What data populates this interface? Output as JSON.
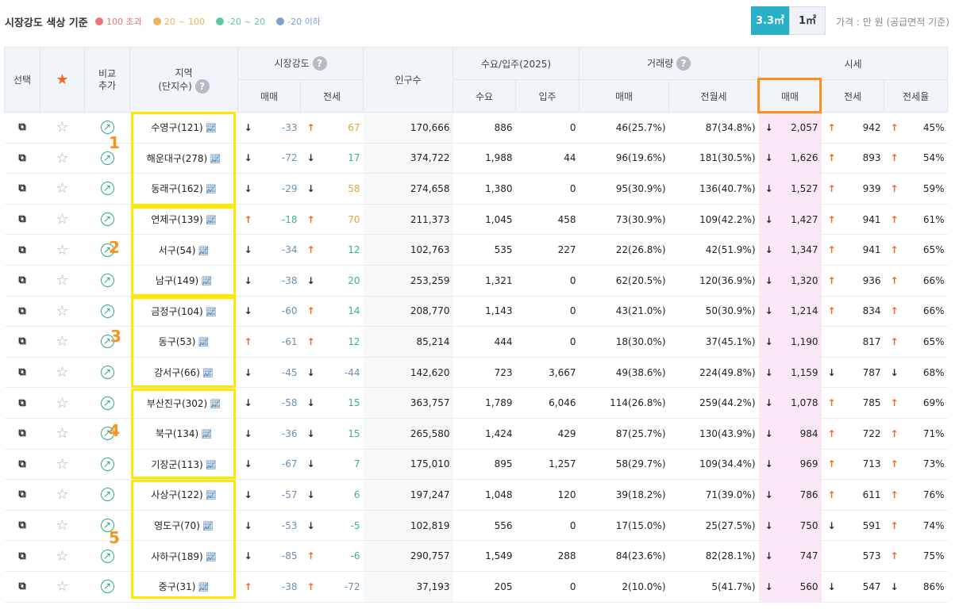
{
  "header": {
    "title": "시장강도 색상 기준",
    "legend": [
      {
        "label": "100 초과",
        "color": "#e8747c"
      },
      {
        "label": "20 ~ 100",
        "color": "#eab35c"
      },
      {
        "label": "-20 ~ 20",
        "color": "#5cc8a3"
      },
      {
        "label": "-20 이하",
        "color": "#7f9fd1"
      }
    ],
    "unit_active": "3.3㎡",
    "unit_inactive": "1㎡",
    "price_note": "가격 : 만 원 (공급면적 기준)"
  },
  "columns": {
    "select": "선택",
    "compare": "비교\n추가",
    "region": "지역",
    "region_sub": "(단지수)",
    "market": "시장강도",
    "market_sale": "매매",
    "market_jeonse": "전세",
    "population": "인구수",
    "supply": "수요/입주(2025)",
    "demand": "수요",
    "move_in": "입주",
    "volume": "거래량",
    "vol_sale": "매매",
    "vol_rent": "전월세",
    "price": "시세",
    "price_sale": "매매",
    "price_jeonse": "전세",
    "jeonse_ratio": "전세율"
  },
  "group_labels": [
    "1",
    "2",
    "3",
    "4",
    "5"
  ],
  "rows": [
    {
      "region": "수영구(121)",
      "ms_dir": "dn",
      "ms": "-33",
      "mj_dir": "up",
      "mj": "67",
      "mj_c": "org",
      "pop": "170,666",
      "demand": "886",
      "movein": "0",
      "vs": "46(25.7%)",
      "vr": "87(34.8%)",
      "ps_dir": "dn",
      "ps": "2,057",
      "pj_dir": "up",
      "pj": "942",
      "r_dir": "up",
      "r": "45%"
    },
    {
      "region": "해운대구(278)",
      "ms_dir": "dn",
      "ms": "-72",
      "mj_dir": "dn",
      "mj": "17",
      "mj_c": "grn",
      "pop": "374,722",
      "demand": "1,988",
      "movein": "44",
      "vs": "96(19.6%)",
      "vr": "181(30.5%)",
      "ps_dir": "dn",
      "ps": "1,626",
      "pj_dir": "up",
      "pj": "893",
      "r_dir": "up",
      "r": "54%"
    },
    {
      "region": "동래구(162)",
      "ms_dir": "dn",
      "ms": "-29",
      "mj_dir": "dn",
      "mj": "58",
      "mj_c": "org",
      "pop": "274,658",
      "demand": "1,380",
      "movein": "0",
      "vs": "95(30.9%)",
      "vr": "136(40.7%)",
      "ps_dir": "dn",
      "ps": "1,527",
      "pj_dir": "up",
      "pj": "939",
      "r_dir": "up",
      "r": "59%"
    },
    {
      "region": "연제구(139)",
      "ms_dir": "up",
      "ms": "-18",
      "ms_c": "grn",
      "mj_dir": "up",
      "mj": "70",
      "mj_c": "org",
      "pop": "211,373",
      "demand": "1,045",
      "movein": "458",
      "vs": "73(30.9%)",
      "vr": "109(42.2%)",
      "ps_dir": "dn",
      "ps": "1,427",
      "pj_dir": "up",
      "pj": "941",
      "r_dir": "up",
      "r": "61%"
    },
    {
      "region": "서구(54)",
      "ms_dir": "dn",
      "ms": "-34",
      "mj_dir": "up",
      "mj": "12",
      "mj_c": "grn",
      "pop": "102,763",
      "demand": "535",
      "movein": "227",
      "vs": "22(26.8%)",
      "vr": "42(51.9%)",
      "ps_dir": "dn",
      "ps": "1,347",
      "pj_dir": "up",
      "pj": "941",
      "r_dir": "up",
      "r": "65%"
    },
    {
      "region": "남구(149)",
      "ms_dir": "dn",
      "ms": "-38",
      "mj_dir": "dn",
      "mj": "20",
      "mj_c": "grn",
      "pop": "253,259",
      "demand": "1,321",
      "movein": "0",
      "vs": "62(20.5%)",
      "vr": "120(36.9%)",
      "ps_dir": "dn",
      "ps": "1,320",
      "pj_dir": "up",
      "pj": "936",
      "r_dir": "up",
      "r": "66%"
    },
    {
      "region": "금정구(104)",
      "ms_dir": "dn",
      "ms": "-60",
      "mj_dir": "up",
      "mj": "14",
      "mj_c": "grn",
      "pop": "208,770",
      "demand": "1,143",
      "movein": "0",
      "vs": "43(21.0%)",
      "vr": "50(30.9%)",
      "ps_dir": "dn",
      "ps": "1,214",
      "pj_dir": "up",
      "pj": "834",
      "r_dir": "up",
      "r": "66%"
    },
    {
      "region": "동구(53)",
      "ms_dir": "up",
      "ms": "-61",
      "mj_dir": "up",
      "mj": "12",
      "mj_c": "grn",
      "pop": "85,214",
      "demand": "444",
      "movein": "0",
      "vs": "18(30.0%)",
      "vr": "37(45.1%)",
      "ps_dir": "dn",
      "ps": "1,190",
      "pj_dir": "",
      "pj": "817",
      "r_dir": "up",
      "r": "65%"
    },
    {
      "region": "강서구(66)",
      "ms_dir": "dn",
      "ms": "-45",
      "mj_dir": "dn",
      "mj": "-44",
      "mj_c": "neg",
      "pop": "142,620",
      "demand": "723",
      "movein": "3,667",
      "vs": "49(38.6%)",
      "vr": "224(49.8%)",
      "ps_dir": "dn",
      "ps": "1,159",
      "pj_dir": "dn",
      "pj": "787",
      "r_dir": "dn",
      "r": "68%"
    },
    {
      "region": "부산진구(302)",
      "ms_dir": "dn",
      "ms": "-58",
      "mj_dir": "dn",
      "mj": "15",
      "mj_c": "grn",
      "pop": "363,757",
      "demand": "1,789",
      "movein": "6,046",
      "vs": "114(26.8%)",
      "vr": "259(44.2%)",
      "ps_dir": "dn",
      "ps": "1,078",
      "pj_dir": "up",
      "pj": "785",
      "r_dir": "up",
      "r": "69%"
    },
    {
      "region": "북구(134)",
      "ms_dir": "dn",
      "ms": "-36",
      "mj_dir": "dn",
      "mj": "15",
      "mj_c": "grn",
      "pop": "265,580",
      "demand": "1,424",
      "movein": "429",
      "vs": "87(25.7%)",
      "vr": "130(43.9%)",
      "ps_dir": "dn",
      "ps": "984",
      "pj_dir": "up",
      "pj": "722",
      "r_dir": "up",
      "r": "71%"
    },
    {
      "region": "기장군(113)",
      "ms_dir": "dn",
      "ms": "-67",
      "mj_dir": "dn",
      "mj": "7",
      "mj_c": "grn",
      "pop": "175,010",
      "demand": "895",
      "movein": "1,257",
      "vs": "58(29.7%)",
      "vr": "109(34.4%)",
      "ps_dir": "dn",
      "ps": "969",
      "pj_dir": "up",
      "pj": "713",
      "r_dir": "up",
      "r": "73%"
    },
    {
      "region": "사상구(122)",
      "ms_dir": "dn",
      "ms": "-57",
      "mj_dir": "dn",
      "mj": "6",
      "mj_c": "grn",
      "pop": "197,247",
      "demand": "1,048",
      "movein": "120",
      "vs": "39(18.2%)",
      "vr": "71(39.0%)",
      "ps_dir": "dn",
      "ps": "786",
      "pj_dir": "up",
      "pj": "611",
      "r_dir": "up",
      "r": "76%"
    },
    {
      "region": "영도구(70)",
      "ms_dir": "dn",
      "ms": "-53",
      "mj_dir": "dn",
      "mj": "-5",
      "mj_c": "grn",
      "pop": "102,819",
      "demand": "556",
      "movein": "0",
      "vs": "17(15.0%)",
      "vr": "25(27.5%)",
      "ps_dir": "dn",
      "ps": "750",
      "pj_dir": "dn",
      "pj": "591",
      "r_dir": "up",
      "r": "74%"
    },
    {
      "region": "사하구(189)",
      "ms_dir": "dn",
      "ms": "-85",
      "mj_dir": "up",
      "mj": "-6",
      "mj_c": "grn",
      "pop": "290,757",
      "demand": "1,549",
      "movein": "288",
      "vs": "84(23.6%)",
      "vr": "82(28.1%)",
      "ps_dir": "dn",
      "ps": "747",
      "pj_dir": "",
      "pj": "573",
      "r_dir": "up",
      "r": "75%"
    },
    {
      "region": "중구(31)",
      "ms_dir": "up",
      "ms": "-38",
      "mj_dir": "up",
      "mj": "-72",
      "mj_c": "neg",
      "pop": "37,193",
      "demand": "205",
      "movein": "0",
      "vs": "2(10.0%)",
      "vr": "5(41.7%)",
      "ps_dir": "dn",
      "ps": "560",
      "pj_dir": "dn",
      "pj": "547",
      "r_dir": "dn",
      "r": "86%"
    }
  ]
}
